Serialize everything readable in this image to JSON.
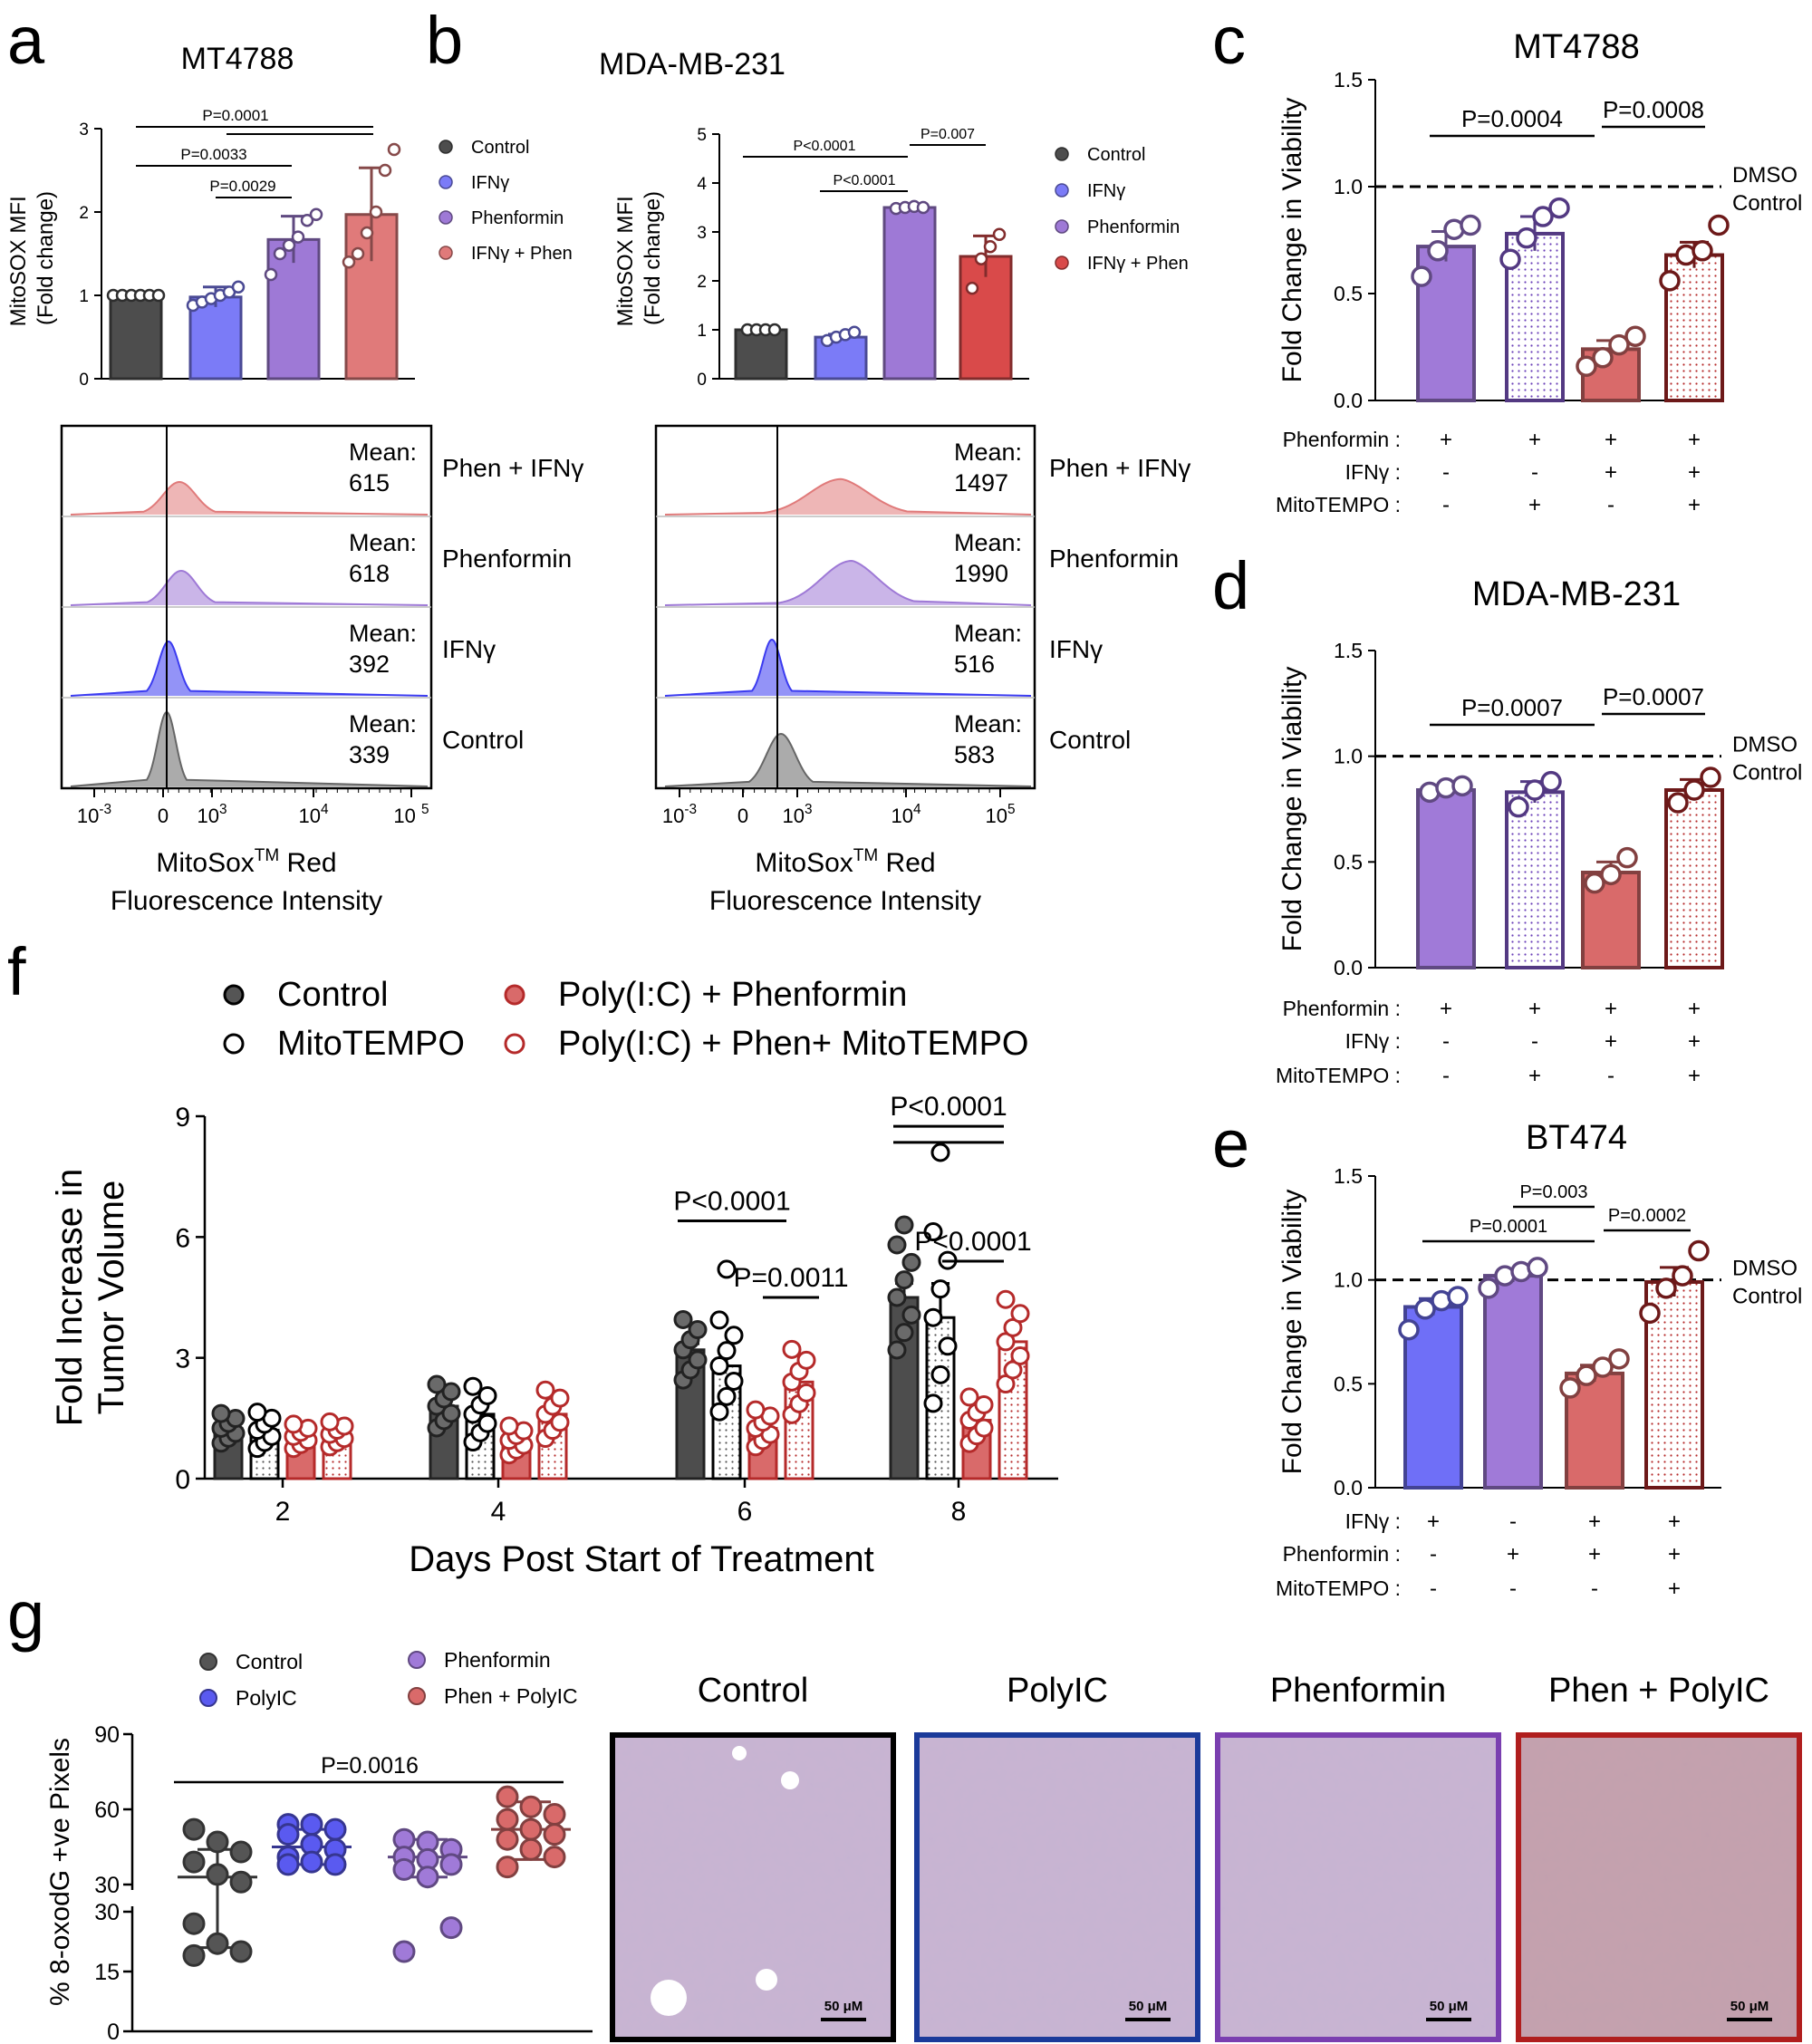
{
  "chart_data": [
    {
      "panel": "a",
      "type": "bar",
      "title": "MT4788",
      "ylabel": "MitoSOX MFI\n(Fold change)",
      "ylim": [
        0,
        3
      ],
      "yticks": [
        "0",
        "1",
        "2",
        "3"
      ],
      "series": [
        {
          "name": "Control",
          "value": 1.0,
          "sem": 0.0,
          "points": [
            1,
            1,
            1,
            1,
            1,
            1
          ],
          "color": "#4d4d4d"
        },
        {
          "name": "IFNγ",
          "value": 0.98,
          "sem": 0.12,
          "points": [
            0.88,
            0.92,
            0.96,
            1.0,
            1.04,
            1.1
          ],
          "color": "#7b7bf7"
        },
        {
          "name": "Phenformin",
          "value": 1.67,
          "sem": 0.28,
          "points": [
            1.25,
            1.5,
            1.6,
            1.7,
            1.9,
            1.97
          ],
          "color": "#9e79d6"
        },
        {
          "name": "IFNγ + Phen",
          "value": 1.97,
          "sem": 0.56,
          "points": [
            1.4,
            1.5,
            1.75,
            2.0,
            2.5,
            2.75
          ],
          "color": "#e07a7a"
        }
      ],
      "annotations": [
        "P=0.0001",
        "P=0.0033",
        "P=0.0029"
      ],
      "legend": [
        "Control",
        "IFNγ",
        "Phenformin",
        "IFNγ + Phen"
      ]
    },
    {
      "panel": "b",
      "type": "bar",
      "title": "MDA-MB-231",
      "ylabel": "MitoSOX MFI\n(Fold change)",
      "ylim": [
        0,
        5
      ],
      "yticks": [
        "0",
        "1",
        "2",
        "3",
        "4",
        "5"
      ],
      "series": [
        {
          "name": "Control",
          "value": 1.0,
          "sem": 0.0,
          "points": [
            1,
            1,
            1,
            1
          ],
          "color": "#4d4d4d"
        },
        {
          "name": "IFNγ",
          "value": 0.85,
          "sem": 0.06,
          "points": [
            0.78,
            0.85,
            0.9,
            0.95
          ],
          "color": "#7b7bf7"
        },
        {
          "name": "Phenformin",
          "value": 3.5,
          "sem": 0.05,
          "points": [
            3.48,
            3.5,
            3.52,
            3.5
          ],
          "color": "#9e79d6"
        },
        {
          "name": "IFNγ + Phen",
          "value": 2.5,
          "sem": 0.42,
          "points": [
            1.85,
            2.45,
            2.7,
            2.95
          ],
          "color": "#d94a4a"
        }
      ],
      "annotations": [
        "P<0.0001",
        "P=0.007",
        "P<0.0001"
      ],
      "legend": [
        "Control",
        "IFNγ",
        "Phenformin",
        "IFNγ + Phen"
      ]
    },
    {
      "panel": "a-hist",
      "type": "histogram",
      "xlabel": "MitoSoxTM Red\nFluorescence Intensity",
      "xticks": [
        "10-3",
        "0",
        "103",
        "104",
        "10 5"
      ],
      "rows": [
        {
          "label": "Phen + IFNγ",
          "mean_label": "Mean:",
          "mean": "615",
          "color": "#e07a7a"
        },
        {
          "label": "Phenformin",
          "mean_label": "Mean:",
          "mean": "618",
          "color": "#9e79d6"
        },
        {
          "label": "IFNγ",
          "mean_label": "Mean:",
          "mean": "392",
          "color": "#3b3bf0"
        },
        {
          "label": "Control",
          "mean_label": "Mean:",
          "mean": "339",
          "color": "#666666"
        }
      ]
    },
    {
      "panel": "b-hist",
      "type": "histogram",
      "xlabel": "MitoSoxTM Red\nFluorescence Intensity",
      "xticks": [
        "10-3",
        "0",
        "103",
        "104",
        "105"
      ],
      "rows": [
        {
          "label": "Phen + IFNγ",
          "mean_label": "Mean:",
          "mean": "1497",
          "color": "#e07a7a"
        },
        {
          "label": "Phenformin",
          "mean_label": "Mean:",
          "mean": "1990",
          "color": "#9e79d6"
        },
        {
          "label": "IFNγ",
          "mean_label": "Mean:",
          "mean": "516",
          "color": "#3b3bf0"
        },
        {
          "label": "Control",
          "mean_label": "Mean:",
          "mean": "583",
          "color": "#666666"
        }
      ]
    },
    {
      "panel": "c",
      "type": "bar",
      "title": "MT4788",
      "ylabel": "Fold Change in Viability",
      "ylim": [
        0,
        1.5
      ],
      "yticks": [
        "0.0",
        "0.5",
        "1.0",
        "1.5"
      ],
      "reference_line": {
        "value": 1.0,
        "label": "DMSO\nControl"
      },
      "series": [
        {
          "value": 0.72,
          "sem": 0.07,
          "points": [
            0.58,
            0.7,
            0.8,
            0.82
          ],
          "color": "#a07ad8",
          "hatched": false
        },
        {
          "value": 0.78,
          "sem": 0.08,
          "points": [
            0.66,
            0.76,
            0.86,
            0.9
          ],
          "color": "#6a3fb8",
          "hatched": true
        },
        {
          "value": 0.24,
          "sem": 0.04,
          "points": [
            0.16,
            0.2,
            0.26,
            0.3
          ],
          "color": "#d96a6a",
          "hatched": false
        },
        {
          "value": 0.68,
          "sem": 0.06,
          "points": [
            0.56,
            0.68,
            0.7,
            0.82
          ],
          "color": "#b52a2a",
          "hatched": true
        }
      ],
      "annotations": [
        "P=0.0004",
        "P=0.0008"
      ],
      "treatment_rows": [
        {
          "label": "Phenformin :",
          "values": [
            "+",
            "+",
            "+",
            "+"
          ]
        },
        {
          "label": "IFNγ :",
          "values": [
            "-",
            "-",
            "+",
            "+"
          ]
        },
        {
          "label": "MitoTEMPO :",
          "values": [
            "-",
            "+",
            "-",
            "+"
          ]
        }
      ]
    },
    {
      "panel": "d",
      "type": "bar",
      "title": "MDA-MB-231",
      "ylabel": "Fold Change in Viability",
      "ylim": [
        0,
        1.5
      ],
      "yticks": [
        "0.0",
        "0.5",
        "1.0",
        "1.5"
      ],
      "reference_line": {
        "value": 1.0,
        "label": "DMSO\nControl"
      },
      "series": [
        {
          "value": 0.84,
          "sem": 0.02,
          "points": [
            0.83,
            0.85,
            0.86
          ],
          "color": "#a07ad8",
          "hatched": false
        },
        {
          "value": 0.83,
          "sem": 0.05,
          "points": [
            0.76,
            0.84,
            0.88
          ],
          "color": "#6a3fb8",
          "hatched": true
        },
        {
          "value": 0.45,
          "sem": 0.05,
          "points": [
            0.4,
            0.44,
            0.52
          ],
          "color": "#d96a6a",
          "hatched": false
        },
        {
          "value": 0.84,
          "sem": 0.05,
          "points": [
            0.78,
            0.84,
            0.9
          ],
          "color": "#b52a2a",
          "hatched": true
        }
      ],
      "annotations": [
        "P=0.0007",
        "P=0.0007"
      ],
      "treatment_rows": [
        {
          "label": "Phenformin :",
          "values": [
            "+",
            "+",
            "+",
            "+"
          ]
        },
        {
          "label": "IFNγ :",
          "values": [
            "-",
            "-",
            "+",
            "+"
          ]
        },
        {
          "label": "MitoTEMPO :",
          "values": [
            "-",
            "+",
            "-",
            "+"
          ]
        }
      ]
    },
    {
      "panel": "e",
      "type": "bar",
      "title": "BT474",
      "ylabel": "Fold Change in Viability",
      "ylim": [
        0,
        1.5
      ],
      "yticks": [
        "0.0",
        "0.5",
        "1.0",
        "1.5"
      ],
      "reference_line": {
        "value": 1.0,
        "label": "DMSO\nControl"
      },
      "series": [
        {
          "value": 0.87,
          "sem": 0.04,
          "points": [
            0.76,
            0.86,
            0.9,
            0.92
          ],
          "color": "#6f6ff7",
          "hatched": false
        },
        {
          "value": 1.02,
          "sem": 0.03,
          "points": [
            0.96,
            1.02,
            1.04,
            1.06
          ],
          "color": "#a07ad8",
          "hatched": false
        },
        {
          "value": 0.55,
          "sem": 0.04,
          "points": [
            0.48,
            0.54,
            0.58,
            0.62
          ],
          "color": "#d96a6a",
          "hatched": false
        },
        {
          "value": 0.99,
          "sem": 0.07,
          "points": [
            0.84,
            0.96,
            1.02,
            1.14
          ],
          "color": "#b52a2a",
          "hatched": true
        }
      ],
      "annotations": [
        "P=0.0001",
        "P=0.003",
        "P=0.0002"
      ],
      "treatment_rows": [
        {
          "label": "IFNγ :",
          "values": [
            "+",
            "-",
            "+",
            "+"
          ]
        },
        {
          "label": "Phenformin :",
          "values": [
            "-",
            "+",
            "+",
            "+"
          ]
        },
        {
          "label": "MitoTEMPO :",
          "values": [
            "-",
            "-",
            "-",
            "+"
          ]
        }
      ]
    },
    {
      "panel": "f",
      "type": "bar",
      "xlabel": "Days Post Start of Treatment",
      "ylabel": "Fold Increase in\nTumor Volume",
      "ylim": [
        0,
        9
      ],
      "yticks": [
        "0",
        "3",
        "6",
        "9"
      ],
      "categories": [
        "2",
        "4",
        "6",
        "8"
      ],
      "series": [
        {
          "name": "Control",
          "values": [
            1.25,
            1.8,
            3.2,
            4.5
          ],
          "sem": [
            0.1,
            0.15,
            0.15,
            0.35
          ],
          "color": "#4d4d4d",
          "hatched": false
        },
        {
          "name": "MitoTEMPO",
          "values": [
            1.2,
            1.6,
            2.8,
            4.0
          ],
          "sem": [
            0.15,
            0.25,
            0.4,
            0.85
          ],
          "color": "#ffffff",
          "hatched": true
        },
        {
          "name": "Poly(I:C) + Phenformin",
          "values": [
            1.05,
            0.95,
            1.25,
            1.45
          ],
          "sem": [
            0.08,
            0.12,
            0.15,
            0.2
          ],
          "color": "#d96a6a",
          "hatched": false
        },
        {
          "name": "Poly(I:C) + Phen+ MitoTEMPO",
          "values": [
            1.1,
            1.6,
            2.4,
            3.4
          ],
          "sem": [
            0.08,
            0.2,
            0.25,
            0.3
          ],
          "color": "#b52a2a",
          "hatched": true
        }
      ],
      "annotations": [
        "P<0.0001",
        "P=0.0011",
        "P<0.0001",
        "P<0.0001"
      ],
      "legend": [
        "Control",
        "MitoTEMPO",
        "Poly(I:C) + Phenformin",
        "Poly(I:C) + Phen+ MitoTEMPO"
      ]
    },
    {
      "panel": "g",
      "type": "scatter",
      "ylabel": "% 8-oxodG +ve Pixels",
      "yticks_upper": [
        "30",
        "60",
        "90"
      ],
      "yticks_lower": [
        "0",
        "15",
        "30"
      ],
      "series": [
        {
          "name": "Control",
          "mean": 33,
          "sd_low": 21,
          "sd_high": 44,
          "points": [
            52,
            47,
            43,
            39,
            34,
            31,
            27,
            22,
            20,
            19
          ],
          "color": "#555555"
        },
        {
          "name": "PolyIC",
          "mean": 45,
          "sd_low": 38,
          "sd_high": 52,
          "points": [
            54,
            54,
            52,
            50,
            46,
            44,
            41,
            39,
            38,
            38
          ],
          "color": "#5a5af0"
        },
        {
          "name": "Phenformin",
          "mean": 41,
          "sd_low": 33,
          "sd_high": 48,
          "points": [
            48,
            47,
            44,
            41,
            40,
            38,
            36,
            33,
            26,
            20
          ],
          "color": "#a07ad8"
        },
        {
          "name": "Phen + PolyIC",
          "mean": 52,
          "sd_low": 40,
          "sd_high": 63,
          "points": [
            65,
            61,
            58,
            56,
            52,
            50,
            48,
            44,
            41,
            37
          ],
          "color": "#d96a6a"
        }
      ],
      "annotations": [
        "P=0.0016"
      ],
      "legend": [
        "Control",
        "Phenformin",
        "PolyIC",
        "Phen + PolyIC"
      ]
    }
  ],
  "panel_letters": [
    "a",
    "b",
    "c",
    "d",
    "e",
    "f",
    "g"
  ],
  "micrographs": [
    {
      "title": "Control",
      "scale": "50 μM",
      "border": "#000000"
    },
    {
      "title": "PolyIC",
      "scale": "50 μM",
      "border": "#1b3a9a"
    },
    {
      "title": "Phenformin",
      "scale": "50 μM",
      "border": "#7a3fb0"
    },
    {
      "title": "Phen + PolyIC",
      "scale": "50 μM",
      "border": "#b01e1e"
    }
  ]
}
